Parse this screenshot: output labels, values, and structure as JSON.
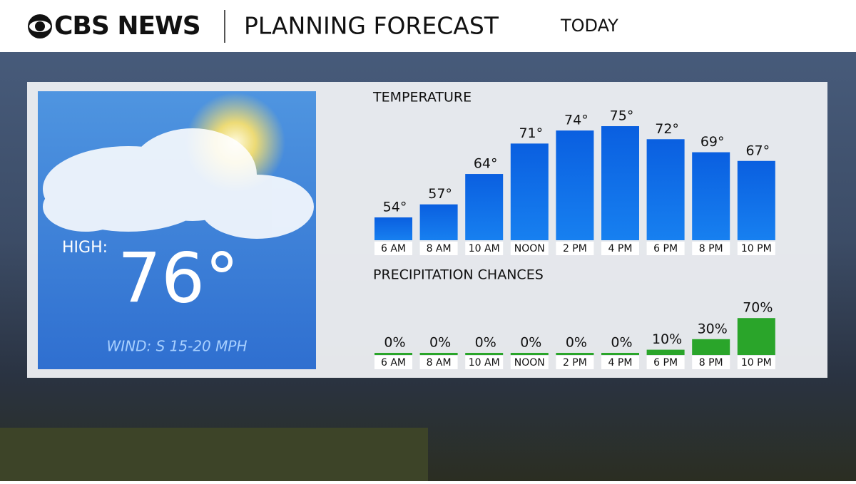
{
  "header": {
    "brand": "CBS NEWS",
    "title": "PLANNING FORECAST",
    "subtitle": "TODAY"
  },
  "high": {
    "label": "HIGH:",
    "value": "76°",
    "wind": "WIND: S 15-20 MPH"
  },
  "chart_data": [
    {
      "type": "bar",
      "title": "TEMPERATURE",
      "color": "#0a5fe0",
      "categories": [
        "6 AM",
        "8 AM",
        "10 AM",
        "NOON",
        "2 PM",
        "4 PM",
        "6 PM",
        "8 PM",
        "10 PM"
      ],
      "values": [
        54,
        57,
        64,
        71,
        74,
        75,
        72,
        69,
        67
      ],
      "value_labels": [
        "54°",
        "57°",
        "64°",
        "71°",
        "74°",
        "75°",
        "72°",
        "69°",
        "67°"
      ]
    },
    {
      "type": "bar",
      "title": "PRECIPITATION CHANCES",
      "color": "#2aa52a",
      "categories": [
        "6 AM",
        "8 AM",
        "10 AM",
        "NOON",
        "2 PM",
        "4 PM",
        "6 PM",
        "8 PM",
        "10 PM"
      ],
      "values": [
        0,
        0,
        0,
        0,
        0,
        0,
        10,
        30,
        70
      ],
      "value_labels": [
        "0%",
        "0%",
        "0%",
        "0%",
        "0%",
        "0%",
        "10%",
        "30%",
        "70%"
      ]
    }
  ]
}
